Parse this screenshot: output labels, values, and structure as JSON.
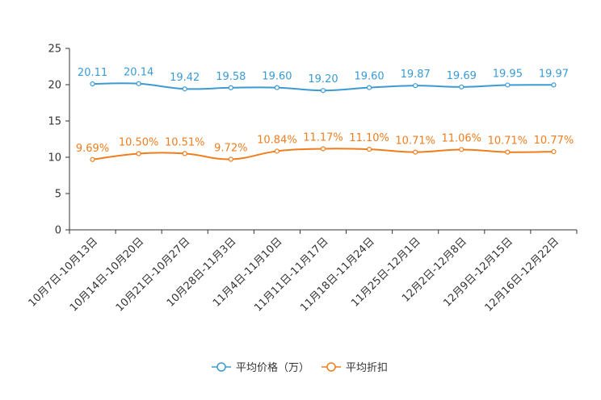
{
  "chart_data": {
    "type": "line",
    "title": "",
    "xlabel": "",
    "ylabel": "",
    "ylim": [
      0,
      25
    ],
    "yticks": [
      0,
      5,
      10,
      15,
      20,
      25
    ],
    "grid": false,
    "legend_position": "bottom-center",
    "categories": [
      "10月7日-10月13日",
      "10月14日-10月20日",
      "10月21日-10月27日",
      "10月28日-11月3日",
      "11月4日-11月10日",
      "11月11日-11月17日",
      "11月18日-11月24日",
      "11月25日-12月1日",
      "12月2日-12月8日",
      "12月9日-12月15日",
      "12月16日-12月22日"
    ],
    "series": [
      {
        "name": "平均价格（万）",
        "color": "#3A9BD4",
        "values": [
          20.11,
          20.14,
          19.42,
          19.58,
          19.6,
          19.2,
          19.6,
          19.87,
          19.69,
          19.95,
          19.97
        ],
        "labels": [
          "20.11",
          "20.14",
          "19.42",
          "19.58",
          "19.60",
          "19.20",
          "19.60",
          "19.87",
          "19.69",
          "19.95",
          "19.97"
        ]
      },
      {
        "name": "平均折扣",
        "color": "#F07D1E",
        "values": [
          9.69,
          10.5,
          10.51,
          9.72,
          10.84,
          11.17,
          11.1,
          10.71,
          11.06,
          10.71,
          10.77
        ],
        "labels": [
          "9.69%",
          "10.50%",
          "10.51%",
          "9.72%",
          "10.84%",
          "11.17%",
          "11.10%",
          "10.71%",
          "11.06%",
          "10.71%",
          "10.77%"
        ]
      }
    ]
  }
}
